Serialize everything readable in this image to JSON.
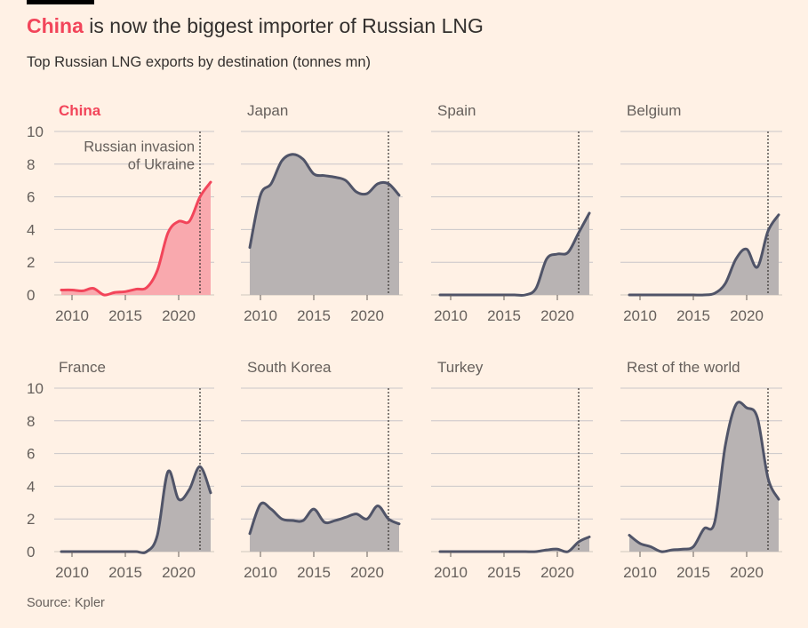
{
  "title_highlight": "China",
  "title_rest": " is now the biggest importer of Russian LNG",
  "subtitle": "Top Russian LNG exports by destination (tonnes mn)",
  "source": "Source: Kpler",
  "chart_data": {
    "type": "area",
    "x": [
      2009,
      2010,
      2011,
      2012,
      2013,
      2014,
      2015,
      2016,
      2017,
      2018,
      2019,
      2020,
      2021,
      2022,
      2023
    ],
    "ylim": [
      0,
      10
    ],
    "yticks": [
      "0",
      "2",
      "4",
      "6",
      "8",
      "10"
    ],
    "xticks": [
      "2010",
      "2015",
      "2020"
    ],
    "grid": true,
    "annotation": {
      "x": 2022,
      "line1": "Russian invasion",
      "line2": "of Ukraine"
    },
    "colors": {
      "highlight_line": "#f2455a",
      "highlight_fill": "#f9a9ae",
      "line": "#505468",
      "fill": "#b8b3b3"
    },
    "panels": [
      {
        "name": "China",
        "highlight": true,
        "values": [
          0.3,
          0.3,
          0.25,
          0.4,
          0,
          0.15,
          0.2,
          0.35,
          0.45,
          1.5,
          3.8,
          4.5,
          4.5,
          6.0,
          6.9
        ]
      },
      {
        "name": "Japan",
        "values": [
          2.9,
          6.1,
          6.8,
          8.2,
          8.6,
          8.3,
          7.4,
          7.3,
          7.2,
          7.0,
          6.3,
          6.2,
          6.8,
          6.8,
          6.1
        ]
      },
      {
        "name": "Spain",
        "values": [
          0,
          0,
          0,
          0,
          0,
          0,
          0,
          0,
          0,
          0.4,
          2.2,
          2.5,
          2.6,
          3.8,
          5.0
        ]
      },
      {
        "name": "Belgium",
        "values": [
          0,
          0,
          0,
          0,
          0,
          0,
          0,
          0,
          0.1,
          0.7,
          2.2,
          2.8,
          1.7,
          3.9,
          4.9
        ]
      },
      {
        "name": "France",
        "values": [
          0,
          0,
          0,
          0,
          0,
          0,
          0,
          0,
          0,
          1.0,
          4.9,
          3.2,
          3.8,
          5.2,
          3.6
        ]
      },
      {
        "name": "South Korea",
        "values": [
          1.1,
          2.9,
          2.6,
          2.0,
          1.9,
          1.9,
          2.6,
          1.8,
          1.9,
          2.1,
          2.3,
          2.0,
          2.8,
          2.0,
          1.7
        ]
      },
      {
        "name": "Turkey",
        "values": [
          0,
          0,
          0,
          0,
          0,
          0,
          0,
          0,
          0,
          0,
          0.1,
          0.15,
          0,
          0.6,
          0.9
        ]
      },
      {
        "name": "Rest of the world",
        "values": [
          1.0,
          0.5,
          0.3,
          0,
          0.1,
          0.15,
          0.3,
          1.4,
          1.8,
          6.5,
          9.0,
          8.8,
          8.2,
          4.5,
          3.2
        ]
      }
    ]
  }
}
